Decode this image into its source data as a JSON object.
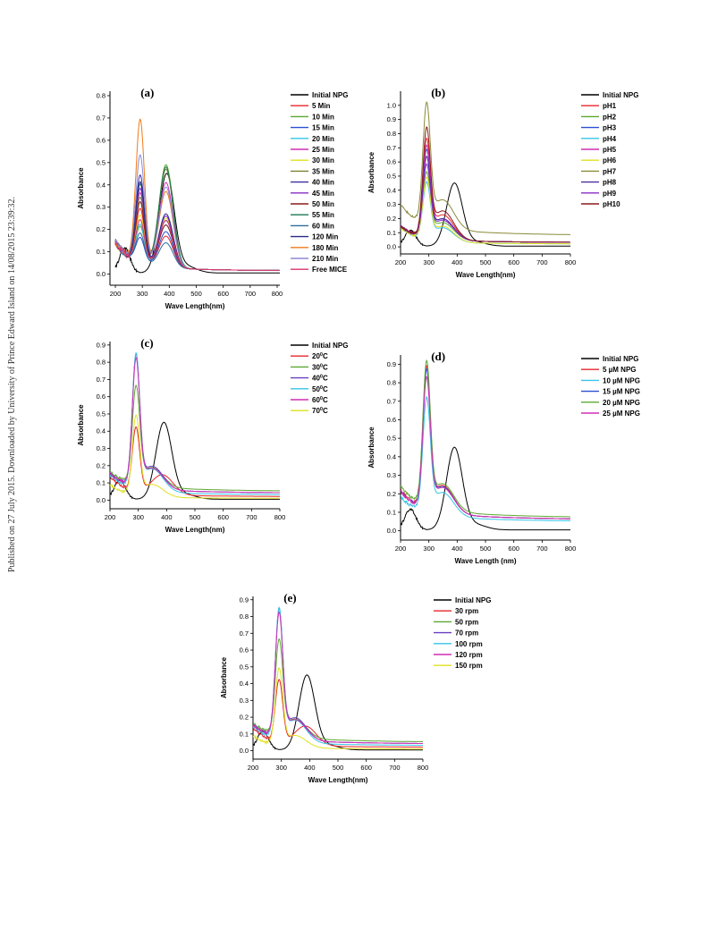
{
  "sidebar_text": "Published on 27 July 2015. Downloaded by University of Prince Edward Island on 14/08/2015 23:39:32.",
  "chart_data": [
    {
      "id": "a",
      "type": "line",
      "title": "(a)",
      "xlabel": "Wave Length(nm)",
      "ylabel": "Absorbance",
      "xlim": [
        180,
        810
      ],
      "ylim": [
        -0.05,
        0.82
      ],
      "xticks": [
        200,
        300,
        400,
        500,
        600,
        700,
        800
      ],
      "yticks": [
        0.0,
        0.1,
        0.2,
        0.3,
        0.4,
        0.5,
        0.6,
        0.7,
        0.8
      ],
      "ytick_decimals": 1,
      "x_start": 200,
      "legend": "right",
      "grid": false,
      "series": [
        {
          "name": "Initial NPG",
          "color": "#000000",
          "kind": "npg"
        },
        {
          "name": "5 Min",
          "color": "#e8252b",
          "kind": "pair",
          "p1": 0.33,
          "p2": 0.2
        },
        {
          "name": "10 Min",
          "color": "#5da832",
          "kind": "pair",
          "p1": 0.25,
          "p2": 0.52
        },
        {
          "name": "15 Min",
          "color": "#2a4fd1",
          "kind": "pair",
          "p1": 0.2,
          "p2": 0.22
        },
        {
          "name": "20 Min",
          "color": "#35c4e8",
          "kind": "pair",
          "p1": 0.26,
          "p2": 0.25
        },
        {
          "name": "25 Min",
          "color": "#d12fb5",
          "kind": "pair",
          "p1": 0.4,
          "p2": 0.44
        },
        {
          "name": "30 Min",
          "color": "#e0e020",
          "kind": "pair",
          "p1": 0.3,
          "p2": 0.28
        },
        {
          "name": "35 Min",
          "color": "#7f8030",
          "kind": "pair",
          "p1": 0.38,
          "p2": 0.5
        },
        {
          "name": "40 Min",
          "color": "#3a2fa0",
          "kind": "pair",
          "p1": 0.48,
          "p2": 0.27
        },
        {
          "name": "45 Min",
          "color": "#8a2bc4",
          "kind": "pair",
          "p1": 0.42,
          "p2": 0.29
        },
        {
          "name": "50 Min",
          "color": "#8b1a1a",
          "kind": "pair",
          "p1": 0.36,
          "p2": 0.25
        },
        {
          "name": "55 Min",
          "color": "#1a7a50",
          "kind": "pair",
          "p1": 0.44,
          "p2": 0.51
        },
        {
          "name": "60 Min",
          "color": "#2a6fa0",
          "kind": "pair",
          "p1": 0.22,
          "p2": 0.17
        },
        {
          "name": "120 Min",
          "color": "#2a2a8a",
          "kind": "pair",
          "p1": 0.45,
          "p2": 0.3
        },
        {
          "name": "180 Min",
          "color": "#f07a1a",
          "kind": "pair",
          "p1": 0.73,
          "p2": 0.4
        },
        {
          "name": "210 Min",
          "color": "#8a8ad8",
          "kind": "pair",
          "p1": 0.57,
          "p2": 0.42
        },
        {
          "name": "Free MICE",
          "color": "#d8336a",
          "kind": "pair",
          "p1": 0.28,
          "p2": 0.27
        }
      ]
    },
    {
      "id": "b",
      "type": "line",
      "title": "(b)",
      "xlabel": "Wave Length(nm)",
      "ylabel": "Absorbance",
      "xlim": [
        200,
        800
      ],
      "ylim": [
        -0.05,
        1.1
      ],
      "xticks": [
        200,
        300,
        400,
        500,
        600,
        700,
        800
      ],
      "yticks": [
        0.0,
        0.1,
        0.2,
        0.3,
        0.4,
        0.5,
        0.6,
        0.7,
        0.8,
        0.9,
        1.0
      ],
      "ytick_decimals": 1,
      "x_start": 200,
      "legend": "right",
      "grid": false,
      "series": [
        {
          "name": "Initial NPG",
          "color": "#000000",
          "kind": "npg"
        },
        {
          "name": "pH1",
          "color": "#e8252b",
          "kind": "peak",
          "p1": 0.72,
          "tail": 0.03,
          "sh": 0.35
        },
        {
          "name": "pH2",
          "color": "#5da832",
          "kind": "peak",
          "p1": 0.5,
          "tail": 0.03,
          "sh": 0.25
        },
        {
          "name": "pH3",
          "color": "#2a4fd1",
          "kind": "peak",
          "p1": 0.65,
          "tail": 0.03,
          "sh": 0.3
        },
        {
          "name": "pH4",
          "color": "#35c4e8",
          "kind": "peak",
          "p1": 0.45,
          "tail": 0.02,
          "sh": 0.2
        },
        {
          "name": "pH5",
          "color": "#d12fb5",
          "kind": "peak",
          "p1": 0.68,
          "tail": 0.03,
          "sh": 0.3
        },
        {
          "name": "pH6",
          "color": "#e0e020",
          "kind": "peak",
          "p1": 0.48,
          "tail": 0.02,
          "sh": 0.22
        },
        {
          "name": "pH7",
          "color": "#8a8a3a",
          "kind": "peak",
          "p1": 0.94,
          "tail": 0.08,
          "sh": 0.45,
          "base": 0.23
        },
        {
          "name": "pH8",
          "color": "#4a2fa0",
          "kind": "peak",
          "p1": 0.6,
          "tail": 0.03,
          "sh": 0.3
        },
        {
          "name": "pH9",
          "color": "#8a2bc4",
          "kind": "peak",
          "p1": 0.55,
          "tail": 0.03,
          "sh": 0.28
        },
        {
          "name": "pH10",
          "color": "#8b1a1a",
          "kind": "peak",
          "p1": 0.79,
          "tail": 0.03,
          "sh": 0.4
        }
      ]
    },
    {
      "id": "c",
      "type": "line",
      "title": "(c)",
      "xlabel": "Wave Length(nm)",
      "ylabel": "Absorbance",
      "xlim": [
        200,
        800
      ],
      "ylim": [
        -0.05,
        0.92
      ],
      "xticks": [
        200,
        300,
        400,
        500,
        600,
        700,
        800
      ],
      "yticks": [
        0.0,
        0.1,
        0.2,
        0.3,
        0.4,
        0.5,
        0.6,
        0.7,
        0.8,
        0.9
      ],
      "ytick_decimals": 1,
      "x_start": 200,
      "legend": "right",
      "grid": false,
      "series": [
        {
          "name": "Initial NPG",
          "color": "#000000",
          "kind": "npg"
        },
        {
          "name": "20°C",
          "sup": "0",
          "pre": "20",
          "post": "C",
          "color": "#e8252b",
          "kind": "peak",
          "p1": 0.44,
          "tail": 0.02,
          "sh": 0.23,
          "shx": 385
        },
        {
          "name": "30°C",
          "sup": "0",
          "pre": "30",
          "post": "C",
          "color": "#5da832",
          "kind": "peak",
          "p1": 0.61,
          "tail": 0.05,
          "sh": 0.25
        },
        {
          "name": "40°C",
          "sup": "0",
          "pre": "40",
          "post": "C",
          "color": "#6a3fc0",
          "kind": "peak",
          "p1": 0.8,
          "tail": 0.04,
          "sh": 0.28
        },
        {
          "name": "50°C",
          "sup": "0",
          "pre": "50",
          "post": "C",
          "color": "#35c4e8",
          "kind": "peak",
          "p1": 0.82,
          "tail": 0.03,
          "sh": 0.27
        },
        {
          "name": "60°C",
          "sup": "0",
          "pre": "60",
          "post": "C",
          "color": "#d12fb5",
          "kind": "peak",
          "p1": 0.78,
          "tail": 0.04,
          "sh": 0.26
        },
        {
          "name": "70°C",
          "sup": "0",
          "pre": "70",
          "post": "C",
          "color": "#e0e020",
          "kind": "peak",
          "p1": 0.49,
          "tail": 0.01,
          "sh": 0.14,
          "base": 0.08
        }
      ]
    },
    {
      "id": "d",
      "type": "line",
      "title": "(d)",
      "xlabel": "Wave Length (nm)",
      "ylabel": "Absorbance",
      "xlim": [
        200,
        800
      ],
      "ylim": [
        -0.05,
        0.95
      ],
      "xticks": [
        200,
        300,
        400,
        500,
        600,
        700,
        800
      ],
      "yticks": [
        0.0,
        0.1,
        0.2,
        0.3,
        0.4,
        0.5,
        0.6,
        0.7,
        0.8,
        0.9
      ],
      "ytick_decimals": 1,
      "x_start": 200,
      "legend": "right",
      "grid": false,
      "series": [
        {
          "name": "Initial NPG",
          "color": "#000000",
          "kind": "npg"
        },
        {
          "name": "5  µM NPG",
          "color": "#e8252b",
          "kind": "peak",
          "p1": 0.83,
          "tail": 0.06,
          "sh": 0.33,
          "base": 0.17
        },
        {
          "name": "10 µM NPG",
          "color": "#35c4e8",
          "kind": "peak",
          "p1": 0.67,
          "tail": 0.05,
          "sh": 0.28,
          "base": 0.14
        },
        {
          "name": "15 µM NPG",
          "color": "#2a4fd1",
          "kind": "peak",
          "p1": 0.81,
          "tail": 0.06,
          "sh": 0.32,
          "base": 0.16
        },
        {
          "name": "20 µM NPG",
          "color": "#5da832",
          "kind": "peak",
          "p1": 0.85,
          "tail": 0.07,
          "sh": 0.33,
          "base": 0.18
        },
        {
          "name": "25 µM NPG",
          "color": "#d12fb5",
          "kind": "peak",
          "p1": 0.77,
          "tail": 0.06,
          "sh": 0.31,
          "base": 0.16
        }
      ]
    },
    {
      "id": "e",
      "type": "line",
      "title": "(e)",
      "xlabel": "Wave Length(nm)",
      "ylabel": "Absorbance",
      "xlim": [
        200,
        800
      ],
      "ylim": [
        -0.05,
        0.92
      ],
      "xticks": [
        200,
        300,
        400,
        500,
        600,
        700,
        800
      ],
      "yticks": [
        0.0,
        0.1,
        0.2,
        0.3,
        0.4,
        0.5,
        0.6,
        0.7,
        0.8,
        0.9
      ],
      "ytick_decimals": 1,
      "x_start": 200,
      "legend": "right",
      "grid": false,
      "series": [
        {
          "name": "Initial NPG",
          "color": "#000000",
          "kind": "npg"
        },
        {
          "name": "30 rpm",
          "color": "#e8252b",
          "kind": "peak",
          "p1": 0.44,
          "tail": 0.02,
          "sh": 0.23,
          "shx": 385
        },
        {
          "name": "50 rpm",
          "color": "#5da832",
          "kind": "peak",
          "p1": 0.61,
          "tail": 0.05,
          "sh": 0.25
        },
        {
          "name": "70 rpm",
          "color": "#6a3fc0",
          "kind": "peak",
          "p1": 0.8,
          "tail": 0.04,
          "sh": 0.28
        },
        {
          "name": "100 rpm",
          "color": "#35c4e8",
          "kind": "peak",
          "p1": 0.82,
          "tail": 0.03,
          "sh": 0.27
        },
        {
          "name": "120 rpm",
          "color": "#d12fb5",
          "kind": "peak",
          "p1": 0.78,
          "tail": 0.04,
          "sh": 0.26
        },
        {
          "name": "150 rpm",
          "color": "#e0e020",
          "kind": "peak",
          "p1": 0.49,
          "tail": 0.01,
          "sh": 0.14,
          "base": 0.08
        }
      ]
    }
  ]
}
